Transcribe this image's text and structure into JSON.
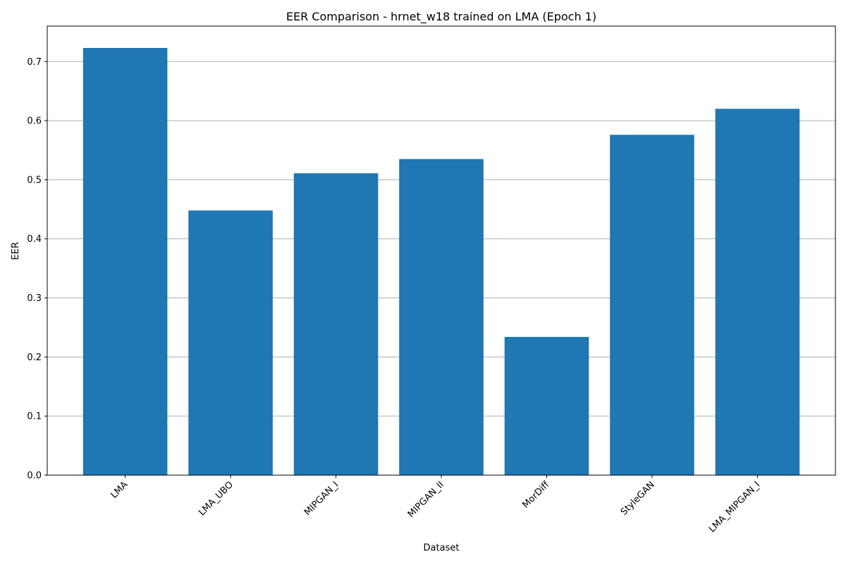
{
  "chart_data": {
    "type": "bar",
    "title": "EER Comparison - hrnet_w18 trained on LMA (Epoch 1)",
    "xlabel": "Dataset",
    "ylabel": "EER",
    "categories": [
      "LMA",
      "LMA_UBO",
      "MIPGAN_I",
      "MIPGAN_II",
      "MorDiff",
      "StyleGAN",
      "LMA_MIPGAN_I"
    ],
    "values": [
      0.723,
      0.448,
      0.511,
      0.535,
      0.234,
      0.576,
      0.62
    ],
    "ylim": [
      0,
      0.76
    ],
    "yticks": [
      0.0,
      0.1,
      0.2,
      0.3,
      0.4,
      0.5,
      0.6,
      0.7
    ],
    "ytick_labels": [
      "0.0",
      "0.1",
      "0.2",
      "0.3",
      "0.4",
      "0.5",
      "0.6",
      "0.7"
    ],
    "grid": "y",
    "bar_color": "#1f77b4"
  }
}
